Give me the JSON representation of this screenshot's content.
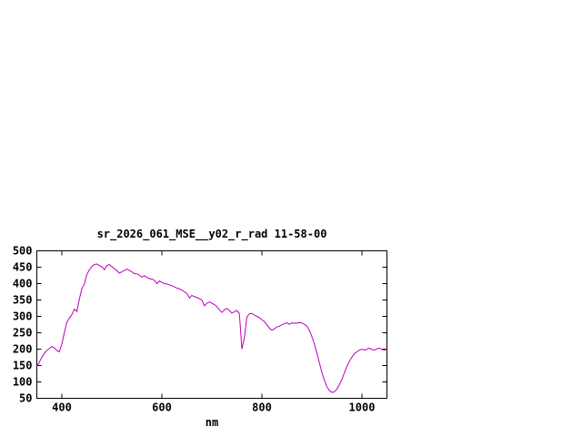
{
  "page": {
    "background": "#ffffff"
  },
  "chart_data": {
    "type": "line",
    "title": "sr_2026_061_MSE__y02_r_rad 11-58-00",
    "xlabel": "nm",
    "ylabel": "",
    "xlim": [
      350,
      1050
    ],
    "ylim": [
      50,
      500
    ],
    "xticks": [
      400,
      600,
      800,
      1000
    ],
    "yticks": [
      50,
      100,
      150,
      200,
      250,
      300,
      350,
      400,
      450,
      500
    ],
    "grid": false,
    "legend_position": "none",
    "line_color": "#bb00bb",
    "axis_color": "#000000",
    "series": [
      {
        "name": "sr_2026_061_MSE__y02_r_rad",
        "x": [
          350,
          355,
          360,
          365,
          370,
          375,
          380,
          385,
          390,
          395,
          400,
          405,
          410,
          415,
          420,
          425,
          430,
          435,
          440,
          445,
          450,
          455,
          460,
          465,
          470,
          475,
          480,
          485,
          490,
          495,
          500,
          505,
          510,
          515,
          520,
          525,
          530,
          535,
          540,
          545,
          550,
          555,
          560,
          565,
          570,
          575,
          580,
          585,
          590,
          595,
          600,
          605,
          610,
          615,
          620,
          625,
          630,
          635,
          640,
          645,
          650,
          655,
          660,
          665,
          670,
          675,
          680,
          685,
          690,
          695,
          700,
          705,
          710,
          715,
          720,
          725,
          730,
          735,
          740,
          745,
          750,
          755,
          760,
          765,
          770,
          775,
          780,
          785,
          790,
          795,
          800,
          805,
          810,
          815,
          820,
          825,
          830,
          835,
          840,
          845,
          850,
          855,
          860,
          865,
          870,
          875,
          880,
          885,
          890,
          895,
          900,
          905,
          910,
          915,
          920,
          925,
          930,
          935,
          940,
          945,
          950,
          955,
          960,
          965,
          970,
          975,
          980,
          985,
          990,
          995,
          1000,
          1005,
          1010,
          1015,
          1020,
          1025,
          1030,
          1035,
          1040,
          1045,
          1050
        ],
        "y": [
          148,
          160,
          175,
          188,
          196,
          202,
          208,
          204,
          196,
          192,
          215,
          250,
          282,
          295,
          305,
          322,
          315,
          352,
          385,
          398,
          428,
          442,
          452,
          458,
          460,
          455,
          452,
          442,
          455,
          458,
          452,
          446,
          440,
          432,
          436,
          440,
          444,
          440,
          436,
          430,
          430,
          426,
          420,
          424,
          419,
          415,
          414,
          410,
          400,
          408,
          404,
          400,
          399,
          396,
          394,
          390,
          386,
          384,
          380,
          375,
          370,
          356,
          364,
          360,
          358,
          354,
          350,
          332,
          340,
          344,
          340,
          336,
          330,
          320,
          312,
          320,
          324,
          318,
          310,
          314,
          318,
          308,
          200,
          235,
          298,
          308,
          309,
          304,
          300,
          296,
          290,
          284,
          274,
          264,
          258,
          262,
          268,
          270,
          274,
          278,
          280,
          276,
          280,
          279,
          280,
          281,
          280,
          276,
          270,
          258,
          238,
          215,
          188,
          158,
          128,
          105,
          85,
          74,
          68,
          70,
          78,
          92,
          108,
          128,
          148,
          163,
          176,
          186,
          192,
          197,
          200,
          197,
          200,
          203,
          199,
          197,
          201,
          203,
          199,
          197,
          200
        ]
      }
    ]
  }
}
